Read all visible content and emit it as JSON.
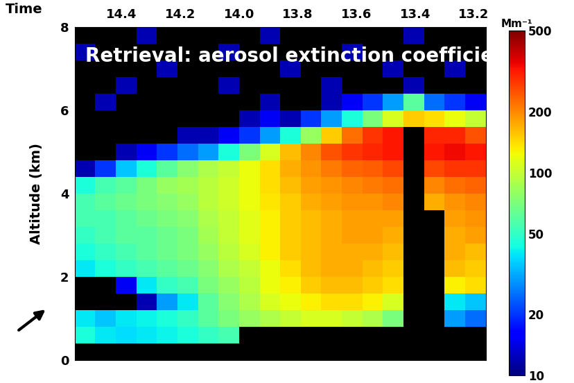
{
  "chart_data": {
    "type": "heatmap",
    "title": "Retrieval: aerosol extinction coefficient",
    "x_label": "Time",
    "y_label": "Altitude (km)",
    "xlim": [
      14.56,
      13.16
    ],
    "xticks": [
      14.4,
      14.2,
      14.0,
      13.8,
      13.6,
      13.4,
      13.2
    ],
    "ylim": [
      0,
      8
    ],
    "yticks": [
      0,
      2,
      4,
      6,
      8
    ],
    "x_edges": [
      14.56,
      14.49,
      14.42,
      14.35,
      14.28,
      14.21,
      14.14,
      14.07,
      14.0,
      13.93,
      13.86,
      13.79,
      13.72,
      13.65,
      13.58,
      13.51,
      13.44,
      13.37,
      13.3,
      13.23,
      13.16
    ],
    "y_edges": [
      0,
      0.4,
      0.8,
      1.2,
      1.6,
      2.0,
      2.4,
      2.8,
      3.2,
      3.6,
      4.0,
      4.4,
      4.8,
      5.2,
      5.6,
      6.0,
      6.4,
      6.8,
      7.2,
      7.6,
      8.0
    ],
    "cells": [
      [
        null,
        null,
        null,
        null,
        null,
        null,
        null,
        null,
        null,
        null,
        null,
        null,
        null,
        null,
        null,
        null,
        null,
        null,
        null,
        null
      ],
      [
        45,
        40,
        38,
        40,
        42,
        45,
        50,
        55,
        null,
        null,
        null,
        null,
        null,
        null,
        null,
        null,
        null,
        null,
        null,
        null
      ],
      [
        40,
        35,
        40,
        42,
        45,
        50,
        60,
        70,
        80,
        90,
        100,
        110,
        110,
        100,
        90,
        70,
        null,
        null,
        30,
        25
      ],
      [
        5,
        5,
        8,
        12,
        30,
        40,
        60,
        75,
        90,
        110,
        120,
        130,
        140,
        140,
        130,
        110,
        null,
        null,
        40,
        35
      ],
      [
        8,
        5,
        15,
        40,
        50,
        55,
        70,
        80,
        95,
        120,
        130,
        150,
        160,
        160,
        150,
        140,
        null,
        null,
        130,
        140
      ],
      [
        40,
        45,
        50,
        55,
        60,
        65,
        75,
        90,
        100,
        120,
        140,
        160,
        170,
        170,
        160,
        150,
        null,
        null,
        160,
        150
      ],
      [
        45,
        50,
        55,
        60,
        65,
        70,
        80,
        95,
        110,
        130,
        150,
        160,
        170,
        170,
        170,
        160,
        null,
        null,
        170,
        160
      ],
      [
        50,
        55,
        60,
        60,
        65,
        70,
        85,
        100,
        115,
        130,
        150,
        160,
        170,
        180,
        180,
        170,
        null,
        null,
        170,
        180
      ],
      [
        55,
        55,
        60,
        65,
        70,
        75,
        90,
        100,
        115,
        130,
        150,
        160,
        170,
        180,
        180,
        180,
        null,
        null,
        180,
        190
      ],
      [
        55,
        60,
        65,
        70,
        75,
        80,
        95,
        105,
        120,
        135,
        150,
        170,
        180,
        190,
        190,
        200,
        null,
        170,
        190,
        200
      ],
      [
        45,
        55,
        60,
        70,
        80,
        85,
        95,
        105,
        120,
        140,
        160,
        180,
        190,
        200,
        210,
        220,
        null,
        200,
        220,
        230
      ],
      [
        12,
        20,
        35,
        45,
        60,
        75,
        90,
        100,
        120,
        140,
        170,
        190,
        210,
        230,
        240,
        260,
        null,
        260,
        280,
        280
      ],
      [
        5,
        8,
        12,
        15,
        20,
        25,
        30,
        45,
        70,
        110,
        160,
        200,
        250,
        280,
        300,
        320,
        null,
        320,
        340,
        320
      ],
      [
        5,
        5,
        8,
        5,
        8,
        12,
        12,
        15,
        20,
        30,
        45,
        80,
        150,
        220,
        280,
        320,
        null,
        300,
        300,
        250
      ],
      [
        5,
        5,
        5,
        8,
        5,
        5,
        8,
        5,
        12,
        15,
        12,
        20,
        30,
        45,
        70,
        110,
        150,
        140,
        120,
        100
      ],
      [
        5,
        12,
        5,
        5,
        5,
        8,
        5,
        5,
        5,
        12,
        5,
        8,
        12,
        15,
        20,
        30,
        60,
        25,
        20,
        15
      ],
      [
        5,
        5,
        12,
        5,
        5,
        5,
        5,
        12,
        5,
        5,
        5,
        5,
        12,
        5,
        5,
        5,
        12,
        5,
        5,
        5
      ],
      [
        5,
        5,
        5,
        5,
        12,
        5,
        5,
        5,
        5,
        5,
        12,
        5,
        5,
        5,
        5,
        12,
        5,
        5,
        12,
        5
      ],
      [
        12,
        5,
        5,
        5,
        5,
        5,
        5,
        12,
        5,
        5,
        5,
        5,
        5,
        12,
        5,
        5,
        5,
        5,
        5,
        5
      ],
      [
        5,
        5,
        5,
        12,
        5,
        5,
        5,
        5,
        5,
        12,
        5,
        5,
        5,
        5,
        5,
        5,
        12,
        5,
        5,
        5
      ]
    ],
    "colorbar": {
      "label": "Mm⁻¹",
      "range": [
        10,
        500
      ],
      "ticks": [
        10,
        20,
        50,
        100,
        200,
        500
      ],
      "log": true
    }
  }
}
